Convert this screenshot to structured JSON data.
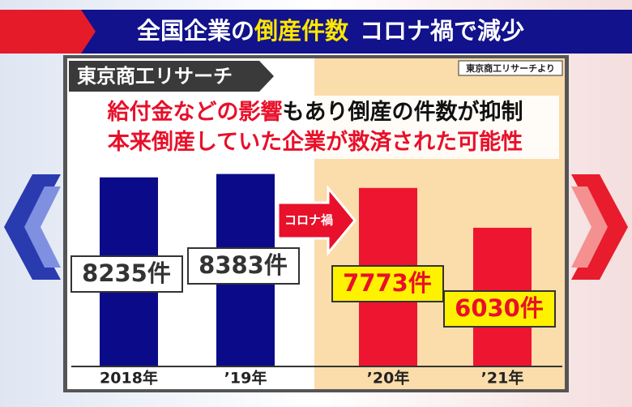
{
  "chart_data": {
    "type": "bar",
    "title": [
      "全国企業の",
      "倒産件数",
      "コロナ禍で減少"
    ],
    "source_header": "東京商工リサーチ",
    "source_note": "東京商工リサーチより",
    "headline": [
      [
        "給付金などの影響",
        "もあり倒産の件数が抑制"
      ],
      [
        "本来倒産していた企業が救済された可能性"
      ]
    ],
    "annotation": "コロナ禍",
    "categories": [
      "2018年",
      "’19年",
      "’20年",
      "’21年"
    ],
    "values": [
      8235,
      8383,
      7773,
      6030
    ],
    "value_labels": [
      "8235件",
      "8383件",
      "7773件",
      "6030件"
    ],
    "colors": [
      "#0b0b8a",
      "#0b0b8a",
      "#ee1530",
      "#ee1530"
    ]
  }
}
